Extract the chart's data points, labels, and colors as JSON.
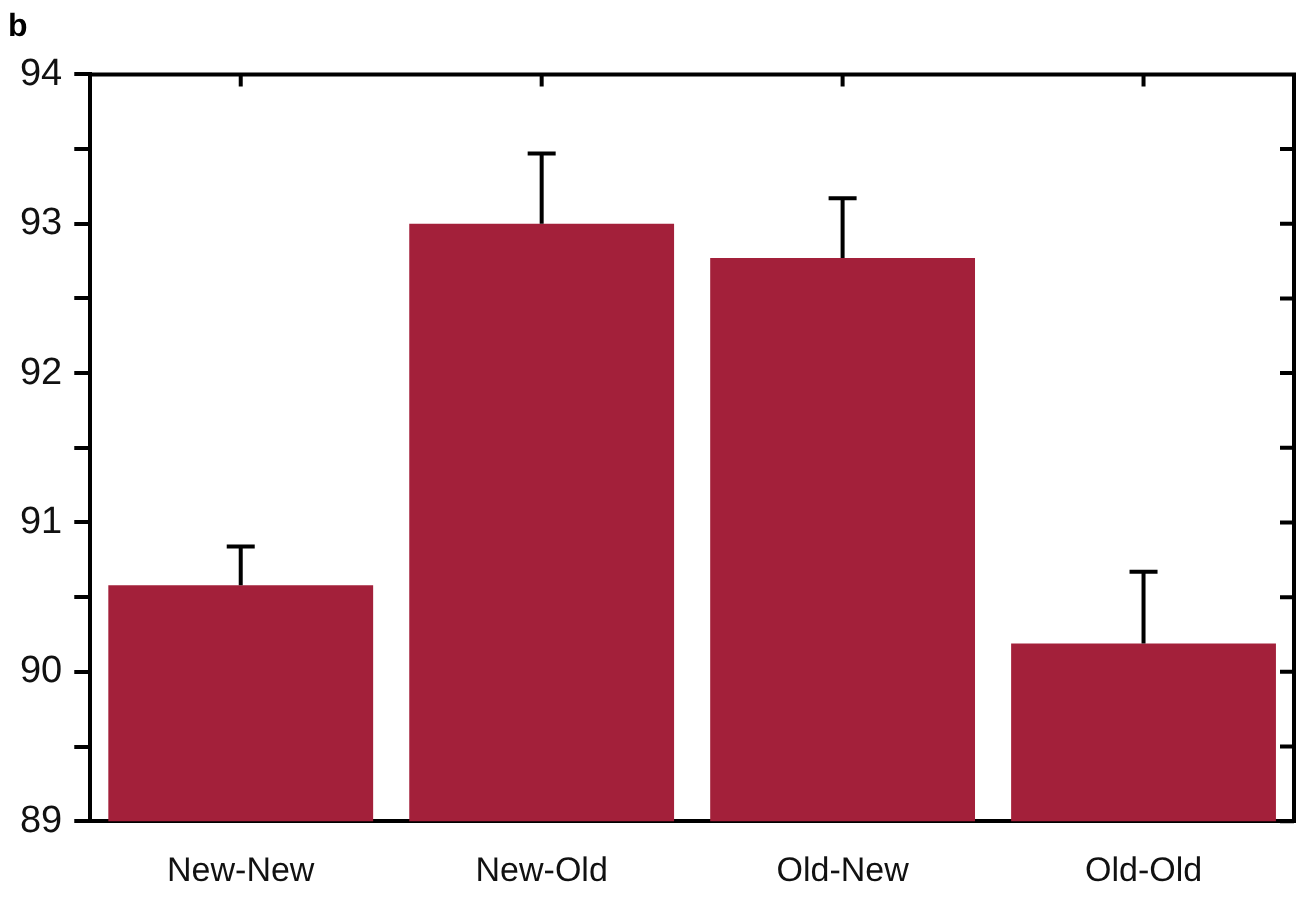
{
  "chart_data": {
    "type": "bar",
    "title": "b",
    "categories": [
      "New-New",
      "New-Old",
      "Old-New",
      "Old-Old"
    ],
    "values": [
      90.58,
      93.0,
      92.77,
      90.19
    ],
    "errors": [
      [
        90.58,
        90.84
      ],
      [
        93.0,
        93.47
      ],
      [
        92.77,
        93.17
      ],
      [
        90.19,
        90.67
      ]
    ],
    "color": "#a3203a",
    "ylim": [
      89,
      94
    ],
    "yticks": [
      89,
      {
        "value": 89.5,
        "label": null
      },
      90,
      {
        "value": 90.5,
        "label": null
      },
      91,
      {
        "value": 91.5,
        "label": null
      },
      92,
      {
        "value": 92.5,
        "label": null
      },
      93,
      {
        "value": 93.5,
        "label": null
      },
      94
    ],
    "grid": false,
    "legend": false
  }
}
